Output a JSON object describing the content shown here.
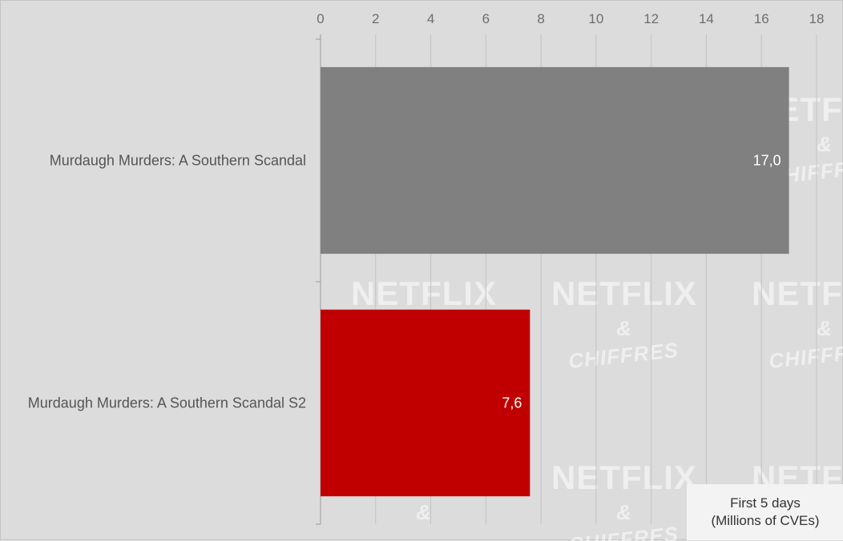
{
  "chart_data": {
    "type": "bar",
    "orientation": "horizontal",
    "categories": [
      "Murdaugh Murders: A Southern Scandal",
      "Murdaugh Murders: A Southern Scandal S2"
    ],
    "values": [
      17.0,
      7.6
    ],
    "value_labels": [
      "17,0",
      "7,6"
    ],
    "bar_colors": [
      "#808080",
      "#c00000"
    ],
    "xlim": [
      0,
      18
    ],
    "x_ticks": [
      "0",
      "2",
      "4",
      "6",
      "8",
      "10",
      "12",
      "14",
      "16",
      "18"
    ],
    "x_axis_position": "top",
    "grid": true,
    "annotation": [
      "First 5 days",
      "(Millions of CVEs)"
    ],
    "annotation_placement": "bottom-right"
  },
  "watermark": {
    "main": "NETFLIX",
    "amp": "&",
    "sub": "CHIFFRES"
  },
  "colors": {
    "background": "#dcdcdc",
    "gridline": "#c3c3c3",
    "axis": "#9a9a9a"
  }
}
